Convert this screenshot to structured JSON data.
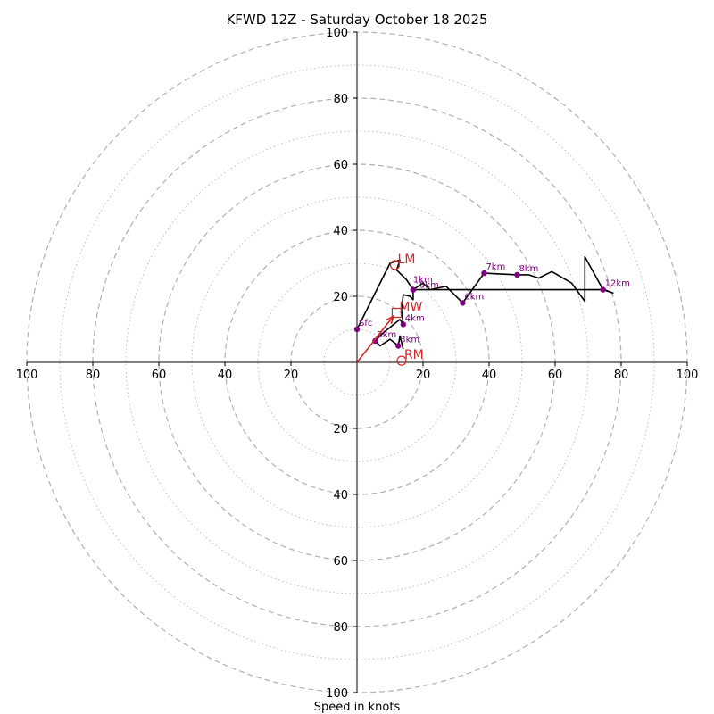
{
  "chart_data": {
    "type": "line",
    "title": "KFWD 12Z - Saturday October 18 2025",
    "xlabel": "Speed in knots",
    "units": "knots",
    "max_speed": 100,
    "ring_major_labels": [
      "20",
      "40",
      "60",
      "80",
      "100"
    ],
    "x_tick_labels": [
      "100",
      "80",
      "60",
      "40",
      "20",
      "20",
      "40",
      "60",
      "80",
      "100"
    ],
    "y_tick_labels": [
      "100",
      "80",
      "60",
      "40",
      "20",
      "20",
      "40",
      "60",
      "80",
      "100"
    ],
    "colors": {
      "trace": "#000000",
      "height_marker": "#800080",
      "storm_motion": "#d62728",
      "grid": "#b0b0b0"
    },
    "hodograph_trace": [
      {
        "u": 0,
        "v": 10
      },
      {
        "u": 10,
        "v": 30
      },
      {
        "u": 13,
        "v": 31
      },
      {
        "u": 12,
        "v": 28
      },
      {
        "u": 15,
        "v": 25
      },
      {
        "u": 17,
        "v": 22
      },
      {
        "u": 20,
        "v": 24
      },
      {
        "u": 22,
        "v": 22
      },
      {
        "u": 27,
        "v": 23
      },
      {
        "u": 32,
        "v": 18
      },
      {
        "u": 38.5,
        "v": 27
      },
      {
        "u": 48.5,
        "v": 26.5
      },
      {
        "u": 52,
        "v": 26.5
      },
      {
        "u": 55,
        "v": 25.5
      },
      {
        "u": 59,
        "v": 27.5
      },
      {
        "u": 65,
        "v": 24
      },
      {
        "u": 69,
        "v": 18.5
      },
      {
        "u": 69,
        "v": 32
      },
      {
        "u": 74.5,
        "v": 22
      },
      {
        "u": 77.5,
        "v": 21
      },
      {
        "u": 75,
        "v": 22
      },
      {
        "u": 74.5,
        "v": 22
      },
      {
        "u": 17,
        "v": 22
      },
      {
        "u": 17,
        "v": 19
      },
      {
        "u": 16,
        "v": 20
      },
      {
        "u": 14,
        "v": 20.5
      },
      {
        "u": 13.5,
        "v": 16
      },
      {
        "u": 14,
        "v": 11.5
      },
      {
        "u": 13,
        "v": 13
      },
      {
        "u": 8,
        "v": 9
      },
      {
        "u": 5.5,
        "v": 6.5
      },
      {
        "u": 7,
        "v": 5
      },
      {
        "u": 10,
        "v": 7
      },
      {
        "u": 12.5,
        "v": 5
      },
      {
        "u": 13,
        "v": 8
      },
      {
        "u": 14,
        "v": 4
      }
    ],
    "height_markers": [
      {
        "label": "Sfc",
        "u": 0,
        "v": 10
      },
      {
        "label": "2km",
        "u": 5.5,
        "v": 6.5
      },
      {
        "label": "3km",
        "u": 12.5,
        "v": 5
      },
      {
        "label": "4km",
        "u": 14,
        "v": 11.5
      },
      {
        "label": "1km",
        "u": 17,
        "v": 22
      },
      {
        "label": "5km",
        "u": 17,
        "v": 22
      },
      {
        "label": "6km",
        "u": 32,
        "v": 18
      },
      {
        "label": "7km",
        "u": 38.5,
        "v": 27
      },
      {
        "label": "8km",
        "u": 48.5,
        "v": 26.5
      },
      {
        "label": "12km",
        "u": 74.5,
        "v": 22
      }
    ],
    "storm_motions": [
      {
        "label": "LM",
        "u": 11.5,
        "v": 29.5,
        "marker": "circle"
      },
      {
        "label": "MW",
        "u": 12,
        "v": 15,
        "marker": "square"
      },
      {
        "label": "RM",
        "u": 13.5,
        "v": 0.5,
        "marker": "circle"
      }
    ],
    "storm_motion_vector": {
      "from_u": 0,
      "from_v": 0,
      "to_u": 11,
      "to_v": 14
    }
  }
}
